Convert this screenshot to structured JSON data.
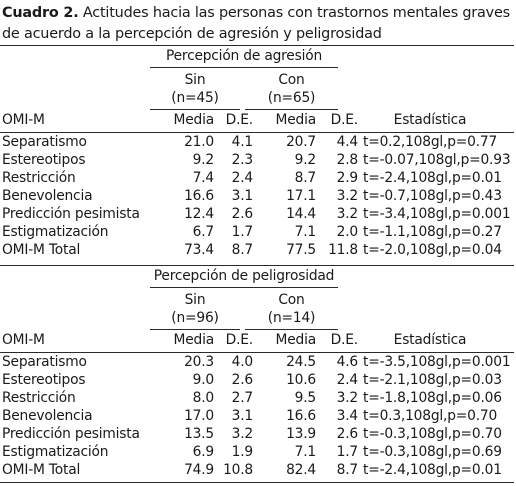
{
  "caption": {
    "label": "Cuadro 2.",
    "text": "Actitudes hacia las personas con trastornos mentales graves de acuerdo a la percepción de agresión y peligrosidad"
  },
  "headers": {
    "row_label": "OMI-M",
    "col_mean": "Media",
    "col_sd": "D.E.",
    "stats": "Estadística"
  },
  "sections": [
    {
      "title": "Percepción de agresión",
      "groups": [
        {
          "label": "Sin",
          "n": "(n=45)"
        },
        {
          "label": "Con",
          "n": "(n=65)"
        }
      ],
      "rows": [
        {
          "label": "Separatismo",
          "m1": "21.0",
          "sd1": "4.1",
          "m2": "20.7",
          "sd2": "4.4",
          "stat": "t=0.2,108gl,p=0.77"
        },
        {
          "label": "Estereotipos",
          "m1": "9.2",
          "sd1": "2.3",
          "m2": "9.2",
          "sd2": "2.8",
          "stat": "t=-0.07,108gl,p=0.93"
        },
        {
          "label": "Restricción",
          "m1": "7.4",
          "sd1": "2.4",
          "m2": "8.7",
          "sd2": "2.9",
          "stat": "t=-2.4,108gl,p=0.01"
        },
        {
          "label": "Benevolencia",
          "m1": "16.6",
          "sd1": "3.1",
          "m2": "17.1",
          "sd2": "3.2",
          "stat": "t=-0.7,108gl,p=0.43"
        },
        {
          "label": "Predicción pesimista",
          "m1": "12.4",
          "sd1": "2.6",
          "m2": "14.4",
          "sd2": "3.2",
          "stat": "t=-3.4,108gl,p=0.001"
        },
        {
          "label": "Estigmatización",
          "m1": "6.7",
          "sd1": "1.7",
          "m2": "7.1",
          "sd2": "2.0",
          "stat": "t=-1.1,108gl,p=0.27"
        },
        {
          "label": "OMI-M Total",
          "m1": "73.4",
          "sd1": "8.7",
          "m2": "77.5",
          "sd2": "11.8",
          "stat": "t=-2.0,108gl,p=0.04"
        }
      ]
    },
    {
      "title": "Percepción de peligrosidad",
      "groups": [
        {
          "label": "Sin",
          "n": "(n=96)"
        },
        {
          "label": "Con",
          "n": "(n=14)"
        }
      ],
      "rows": [
        {
          "label": "Separatismo",
          "m1": "20.3",
          "sd1": "4.0",
          "m2": "24.5",
          "sd2": "4.6",
          "stat": "t=-3.5,108gl,p=0.001"
        },
        {
          "label": "Estereotipos",
          "m1": "9.0",
          "sd1": "2.6",
          "m2": "10.6",
          "sd2": "2.4",
          "stat": "t=-2.1,108gl,p=0.03"
        },
        {
          "label": "Restricción",
          "m1": "8.0",
          "sd1": "2.7",
          "m2": "9.5",
          "sd2": "3.2",
          "stat": "t=-1.8,108gl,p=0.06"
        },
        {
          "label": "Benevolencia",
          "m1": "17.0",
          "sd1": "3.1",
          "m2": "16.6",
          "sd2": "3.4",
          "stat": "t=0.3,108gl,p=0.70"
        },
        {
          "label": "Predicción pesimista",
          "m1": "13.5",
          "sd1": "3.2",
          "m2": "13.9",
          "sd2": "2.6",
          "stat": "t=-0.3,108gl,p=0.70"
        },
        {
          "label": "Estigmatización",
          "m1": "6.9",
          "sd1": "1.9",
          "m2": "7.1",
          "sd2": "1.7",
          "stat": "t=-0.3,108gl,p=0.69"
        },
        {
          "label": "OMI-M Total",
          "m1": "74.9",
          "sd1": "10.8",
          "m2": "82.4",
          "sd2": "8.7",
          "stat": "t=-2.4,108gl,p=0.01"
        }
      ]
    }
  ]
}
